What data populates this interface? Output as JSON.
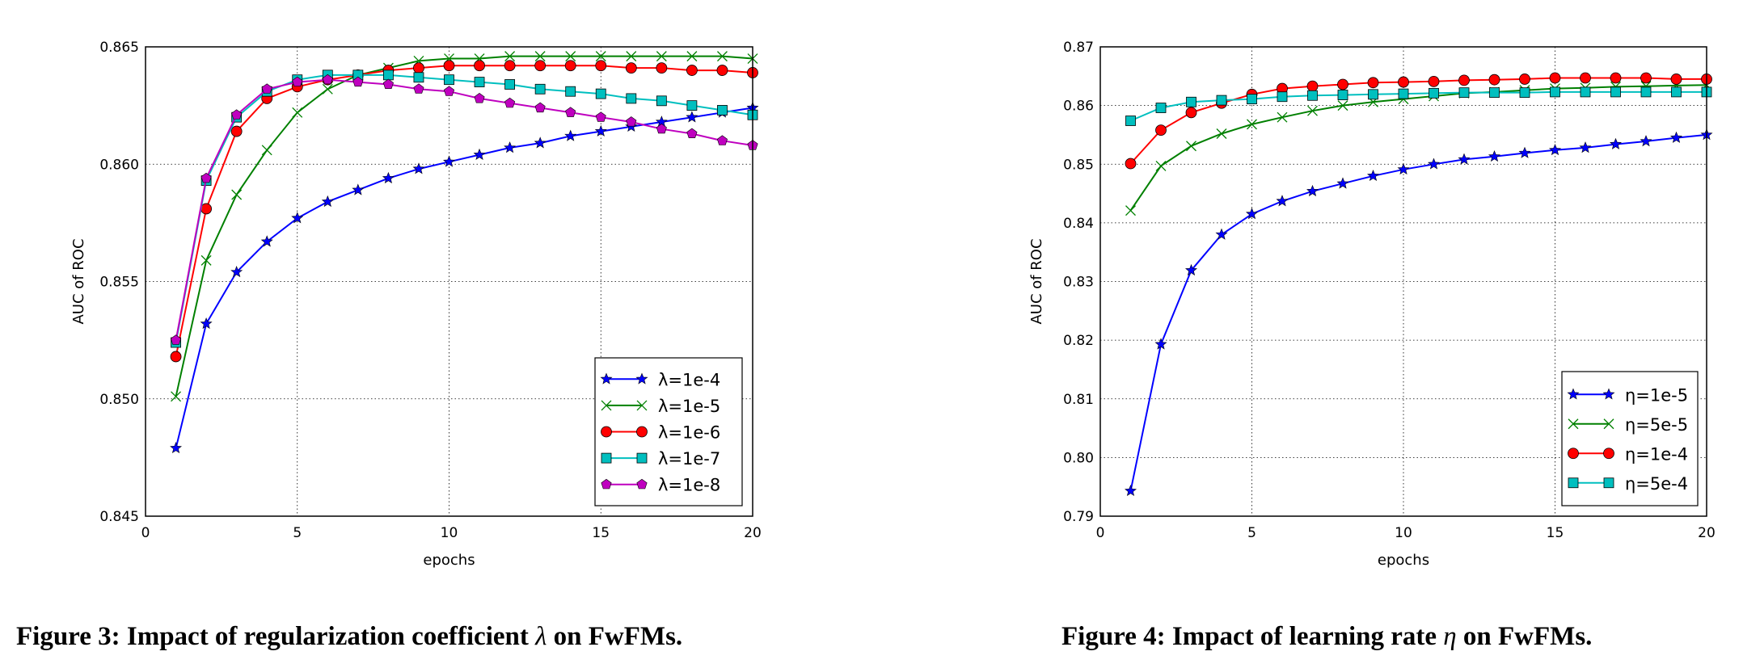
{
  "captions": [
    {
      "prefix": "Figure 3: Impact of regularization coefficient ",
      "symbol": "λ",
      "suffix": " on FwFMs."
    },
    {
      "prefix": "Figure 4: Impact of learning rate ",
      "symbol": "η",
      "suffix": " on FwFMs."
    }
  ],
  "chart_data": [
    {
      "type": "line",
      "title": "",
      "xlabel": "epochs",
      "ylabel": "AUC of ROC",
      "xlim": [
        0,
        20
      ],
      "ylim": [
        0.845,
        0.865
      ],
      "xticks": [
        "0",
        "5",
        "10",
        "15",
        "20"
      ],
      "yticks": [
        "0.845",
        "0.850",
        "0.855",
        "0.860",
        "0.865"
      ],
      "grid": true,
      "legend_position": "bottom-right",
      "x": [
        1,
        2,
        3,
        4,
        5,
        6,
        7,
        8,
        9,
        10,
        11,
        12,
        13,
        14,
        15,
        16,
        17,
        18,
        19,
        20
      ],
      "series": [
        {
          "name": "λ=1e-4",
          "color": "#0000ff",
          "marker": "star",
          "values": [
            0.8479,
            0.8532,
            0.8554,
            0.8567,
            0.8577,
            0.8584,
            0.8589,
            0.8594,
            0.8598,
            0.8601,
            0.8604,
            0.8607,
            0.8609,
            0.8612,
            0.8614,
            0.8616,
            0.8618,
            0.862,
            0.8622,
            0.8624
          ]
        },
        {
          "name": "λ=1e-5",
          "color": "#008000",
          "marker": "x",
          "values": [
            0.8501,
            0.8559,
            0.8587,
            0.8606,
            0.8622,
            0.8632,
            0.8638,
            0.8641,
            0.8644,
            0.8645,
            0.8645,
            0.8646,
            0.8646,
            0.8646,
            0.8646,
            0.8646,
            0.8646,
            0.8646,
            0.8646,
            0.8645
          ]
        },
        {
          "name": "λ=1e-6",
          "color": "#ff0000",
          "marker": "circle",
          "values": [
            0.8518,
            0.8581,
            0.8614,
            0.8628,
            0.8633,
            0.8636,
            0.8638,
            0.864,
            0.8641,
            0.8642,
            0.8642,
            0.8642,
            0.8642,
            0.8642,
            0.8642,
            0.8641,
            0.8641,
            0.864,
            0.864,
            0.8639
          ]
        },
        {
          "name": "λ=1e-7",
          "color": "#00bfbf",
          "marker": "square",
          "values": [
            0.8524,
            0.8593,
            0.862,
            0.8631,
            0.8636,
            0.8638,
            0.8638,
            0.8638,
            0.8637,
            0.8636,
            0.8635,
            0.8634,
            0.8632,
            0.8631,
            0.863,
            0.8628,
            0.8627,
            0.8625,
            0.8623,
            0.8621
          ]
        },
        {
          "name": "λ=1e-8",
          "color": "#bf00bf",
          "marker": "pentagon",
          "values": [
            0.8525,
            0.8594,
            0.8621,
            0.8632,
            0.8635,
            0.8636,
            0.8635,
            0.8634,
            0.8632,
            0.8631,
            0.8628,
            0.8626,
            0.8624,
            0.8622,
            0.862,
            0.8618,
            0.8615,
            0.8613,
            0.861,
            0.8608
          ]
        }
      ]
    },
    {
      "type": "line",
      "title": "",
      "xlabel": "epochs",
      "ylabel": "AUC of ROC",
      "xlim": [
        0,
        20
      ],
      "ylim": [
        0.79,
        0.87
      ],
      "xticks": [
        "0",
        "5",
        "10",
        "15",
        "20"
      ],
      "yticks": [
        "0.79",
        "0.80",
        "0.81",
        "0.82",
        "0.83",
        "0.84",
        "0.85",
        "0.86",
        "0.87"
      ],
      "grid": true,
      "legend_position": "bottom-right",
      "x": [
        1,
        2,
        3,
        4,
        5,
        6,
        7,
        8,
        9,
        10,
        11,
        12,
        13,
        14,
        15,
        16,
        17,
        18,
        19,
        20
      ],
      "series": [
        {
          "name": "η=1e-5",
          "color": "#0000ff",
          "marker": "star",
          "values": [
            0.7943,
            0.8193,
            0.8319,
            0.838,
            0.8415,
            0.8437,
            0.8454,
            0.8467,
            0.848,
            0.8491,
            0.85,
            0.8508,
            0.8513,
            0.8519,
            0.8524,
            0.8528,
            0.8534,
            0.8539,
            0.8545,
            0.855
          ]
        },
        {
          "name": "η=5e-5",
          "color": "#008000",
          "marker": "x",
          "values": [
            0.8421,
            0.8497,
            0.8531,
            0.8552,
            0.8568,
            0.858,
            0.8591,
            0.86,
            0.8606,
            0.8611,
            0.8616,
            0.8621,
            0.8623,
            0.8626,
            0.8629,
            0.863,
            0.8632,
            0.8633,
            0.8634,
            0.8635
          ]
        },
        {
          "name": "η=1e-4",
          "color": "#ff0000",
          "marker": "circle",
          "values": [
            0.8501,
            0.8558,
            0.8588,
            0.8604,
            0.8619,
            0.8629,
            0.8633,
            0.8636,
            0.8639,
            0.864,
            0.8641,
            0.8643,
            0.8644,
            0.8645,
            0.8647,
            0.8647,
            0.8647,
            0.8647,
            0.8645,
            0.8645
          ]
        },
        {
          "name": "η=5e-4",
          "color": "#00bfbf",
          "marker": "square",
          "values": [
            0.8574,
            0.8596,
            0.8606,
            0.8609,
            0.8611,
            0.8615,
            0.8617,
            0.8618,
            0.8619,
            0.862,
            0.8621,
            0.8622,
            0.8622,
            0.8622,
            0.8623,
            0.8623,
            0.8623,
            0.8623,
            0.8623,
            0.8623
          ]
        }
      ]
    }
  ]
}
